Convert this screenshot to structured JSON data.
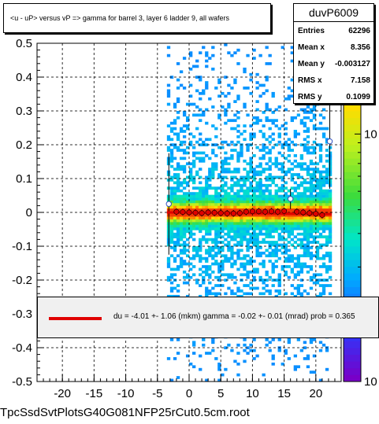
{
  "title": "<u - uP>       versus   vP =>  gamma for barrel 3, layer 6 ladder 9, all wafers",
  "stats": {
    "name": "duvP6009",
    "rows": [
      {
        "label": "Entries",
        "value": "62296"
      },
      {
        "label": "Mean x",
        "value": "8.356"
      },
      {
        "label": "Mean y",
        "value": "-0.003127"
      },
      {
        "label": "RMS x",
        "value": "7.158"
      },
      {
        "label": "RMS y",
        "value": "0.1099"
      }
    ]
  },
  "fit_text": "du =   -4.01 +-  1.06 (mkm) gamma =   -0.02 +-  0.01 (mrad) prob = 0.365",
  "footer": "TpcSsdSvtPlotsG40G081NFP25rCut0.5cm.root",
  "colors": {
    "profile": "#e00000",
    "fit_line": "#e00000"
  },
  "chart_data": {
    "type": "heatmap",
    "x_ticks": [
      -20,
      -15,
      -10,
      -5,
      0,
      5,
      10,
      15,
      20
    ],
    "y_ticks": [
      -0.5,
      -0.4,
      -0.3,
      -0.2,
      -0.1,
      0,
      0.1,
      0.2,
      0.3,
      0.4,
      0.5
    ],
    "xlim": [
      -24,
      24
    ],
    "ylim": [
      -0.5,
      0.5
    ],
    "z_scale": "log",
    "z_ticks": [
      1,
      10
    ],
    "z_max_label": "10",
    "grid": true,
    "x_data_range": [
      -3.5,
      22.5
    ],
    "profile": {
      "x": [
        -3.2,
        -2,
        -1,
        0,
        1,
        2,
        3,
        4,
        5,
        6,
        7,
        8,
        9,
        10,
        11,
        12,
        13,
        14,
        15,
        16,
        17,
        18,
        19,
        20,
        21,
        22.2
      ],
      "y": [
        0.025,
        0.002,
        0.001,
        0.0,
        -0.001,
        -0.002,
        0.0,
        -0.001,
        -0.002,
        -0.003,
        -0.003,
        -0.002,
        0.002,
        0.003,
        0.003,
        0.002,
        0.003,
        0.002,
        0.004,
        0.04,
        0.002,
        0.0,
        -0.002,
        -0.004,
        -0.008,
        0.21
      ],
      "yerr": [
        0.15,
        0.01,
        0.01,
        0.01,
        0.01,
        0.01,
        0.01,
        0.01,
        0.01,
        0.01,
        0.01,
        0.01,
        0.01,
        0.01,
        0.01,
        0.01,
        0.01,
        0.01,
        0.01,
        0.03,
        0.01,
        0.01,
        0.01,
        0.01,
        0.01,
        0.14
      ]
    },
    "fit": {
      "x": [
        -3.5,
        22.5
      ],
      "y": [
        0.0,
        -0.005
      ]
    }
  }
}
